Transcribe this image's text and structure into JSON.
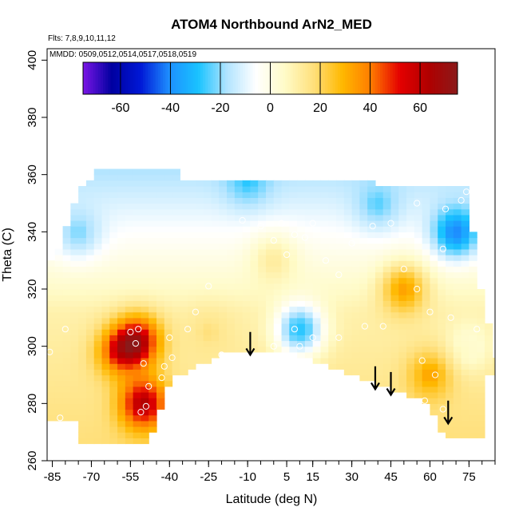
{
  "chart_data": {
    "type": "heatmap",
    "title": "ATOM4 Northbound ArN2_MED",
    "xlabel": "Latitude (deg N)",
    "ylabel": "Theta (C)",
    "annotations": {
      "flights": "Flts: 7,8,9,10,11,12",
      "dates": "MMDD: 0509,0512,0514,0517,0518,0519"
    },
    "xlim": [
      -87,
      85
    ],
    "ylim": [
      260,
      404
    ],
    "x_ticks": [
      -85,
      -70,
      -55,
      -40,
      -25,
      -10,
      5,
      15,
      30,
      45,
      60,
      75
    ],
    "y_ticks": [
      260,
      280,
      300,
      320,
      340,
      360,
      380,
      400
    ],
    "colorbar": {
      "range": [
        -75,
        75
      ],
      "ticks": [
        -60,
        -40,
        -20,
        0,
        20,
        40,
        60
      ],
      "colors": [
        "#7b16e6",
        "#0000a0",
        "#0018d6",
        "#1e90ff",
        "#19c3ff",
        "#b2e4ff",
        "#ffffff",
        "#fffbc8",
        "#ffe07c",
        "#ffb800",
        "#ff7b00",
        "#e40000",
        "#b00000",
        "#8a1a1a"
      ]
    },
    "arrows": [
      {
        "lat": -9,
        "theta": 297
      },
      {
        "lat": 39,
        "theta": 285
      },
      {
        "lat": 45,
        "theta": 283
      },
      {
        "lat": 67,
        "theta": 273
      }
    ],
    "anomaly_regions": [
      {
        "lat": -52,
        "theta": 302,
        "value": 55
      },
      {
        "lat": -50,
        "theta": 280,
        "value": 60
      },
      {
        "lat": -60,
        "theta": 298,
        "value": 38
      },
      {
        "lat": -25,
        "theta": 305,
        "value": 15
      },
      {
        "lat": 0,
        "theta": 330,
        "value": 12
      },
      {
        "lat": 10,
        "theta": 306,
        "value": -30
      },
      {
        "lat": 50,
        "theta": 320,
        "value": 32
      },
      {
        "lat": 60,
        "theta": 290,
        "value": 30
      },
      {
        "lat": 70,
        "theta": 340,
        "value": -40
      },
      {
        "lat": -75,
        "theta": 340,
        "value": -20
      },
      {
        "lat": -10,
        "theta": 358,
        "value": -25
      },
      {
        "lat": 40,
        "theta": 350,
        "value": -22
      },
      {
        "lat": 75,
        "theta": 300,
        "value": 2
      }
    ],
    "sample_points": [
      {
        "lat": -86,
        "theta": 298
      },
      {
        "lat": -80,
        "theta": 306
      },
      {
        "lat": -82,
        "theta": 275
      },
      {
        "lat": -55,
        "theta": 305
      },
      {
        "lat": -53,
        "theta": 301
      },
      {
        "lat": -52,
        "theta": 306
      },
      {
        "lat": -50,
        "theta": 294
      },
      {
        "lat": -48,
        "theta": 286
      },
      {
        "lat": -51,
        "theta": 277
      },
      {
        "lat": -49,
        "theta": 279
      },
      {
        "lat": -43,
        "theta": 289
      },
      {
        "lat": -42,
        "theta": 293
      },
      {
        "lat": -40,
        "theta": 303
      },
      {
        "lat": -39,
        "theta": 296
      },
      {
        "lat": -33,
        "theta": 306
      },
      {
        "lat": -30,
        "theta": 312
      },
      {
        "lat": -25,
        "theta": 321
      },
      {
        "lat": -20,
        "theta": 297
      },
      {
        "lat": -12,
        "theta": 344
      },
      {
        "lat": -5,
        "theta": 342
      },
      {
        "lat": 0,
        "theta": 337
      },
      {
        "lat": 3,
        "theta": 343
      },
      {
        "lat": 5,
        "theta": 332
      },
      {
        "lat": 8,
        "theta": 339
      },
      {
        "lat": 12,
        "theta": 338
      },
      {
        "lat": 15,
        "theta": 343
      },
      {
        "lat": 20,
        "theta": 330
      },
      {
        "lat": 25,
        "theta": 325
      },
      {
        "lat": 30,
        "theta": 336
      },
      {
        "lat": 38,
        "theta": 342
      },
      {
        "lat": 45,
        "theta": 343
      },
      {
        "lat": 55,
        "theta": 350
      },
      {
        "lat": 66,
        "theta": 348
      },
      {
        "lat": 72,
        "theta": 351
      },
      {
        "lat": 74,
        "theta": 354
      },
      {
        "lat": 65,
        "theta": 334
      },
      {
        "lat": 50,
        "theta": 327
      },
      {
        "lat": 55,
        "theta": 320
      },
      {
        "lat": 60,
        "theta": 312
      },
      {
        "lat": 68,
        "theta": 310
      },
      {
        "lat": 78,
        "theta": 306
      },
      {
        "lat": 8,
        "theta": 306
      },
      {
        "lat": 15,
        "theta": 303
      },
      {
        "lat": 25,
        "theta": 303
      },
      {
        "lat": 35,
        "theta": 307
      },
      {
        "lat": 42,
        "theta": 307
      },
      {
        "lat": 57,
        "theta": 295
      },
      {
        "lat": 62,
        "theta": 290
      },
      {
        "lat": 58,
        "theta": 281
      },
      {
        "lat": 65,
        "theta": 278
      },
      {
        "lat": 0,
        "theta": 300
      },
      {
        "lat": 10,
        "theta": 300
      }
    ]
  }
}
